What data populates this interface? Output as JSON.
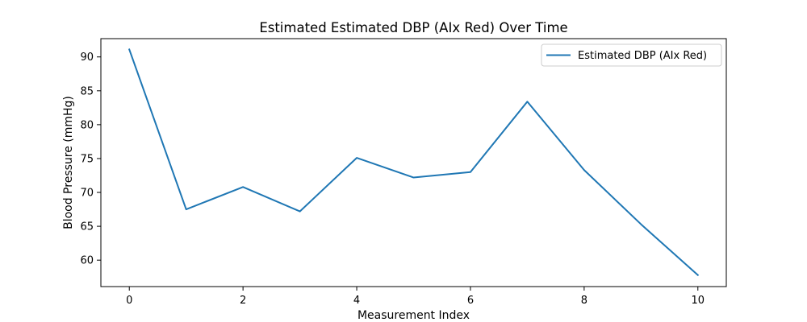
{
  "chart_data": {
    "type": "line",
    "title": "Estimated Estimated DBP (AIx Red) Over Time",
    "xlabel": "Measurement Index",
    "ylabel": "Blood Pressure (mmHg)",
    "x": [
      0,
      1,
      2,
      3,
      4,
      5,
      6,
      7,
      8,
      9,
      10
    ],
    "xlim": [
      -0.5,
      10.5
    ],
    "ylim": [
      56.1,
      92.7
    ],
    "xticks": [
      0,
      2,
      4,
      6,
      8,
      10
    ],
    "yticks": [
      60,
      65,
      70,
      75,
      80,
      85,
      90
    ],
    "grid": false,
    "legend_position": "top-right",
    "series": [
      {
        "name": "Estimated DBP (AIx Red)",
        "color": "#1f77b4",
        "values": [
          91.1,
          67.5,
          70.8,
          67.2,
          75.1,
          72.2,
          73.0,
          83.4,
          73.3,
          65.3,
          57.8
        ]
      }
    ]
  }
}
